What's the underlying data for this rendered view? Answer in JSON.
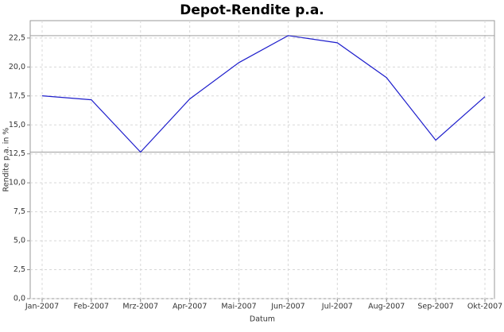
{
  "chart_data": {
    "type": "line",
    "title": "Depot-Rendite p.a.",
    "x_label": "Datum",
    "y_label": "Rendite p.a. in %",
    "categories": [
      "Jan-2007",
      "Feb-2007",
      "Mrz-2007",
      "Apr-2007",
      "Mai-2007",
      "Jun-2007",
      "Jul-2007",
      "Aug-2007",
      "Sep-2007",
      "Okt-2007"
    ],
    "series": [
      {
        "name": "Rendite",
        "color": "#1f1fcc",
        "values": [
          17.51,
          17.17,
          12.65,
          17.24,
          20.38,
          22.71,
          22.09,
          19.08,
          13.68,
          17.44
        ]
      }
    ],
    "ylim": [
      0,
      24
    ],
    "yticks": [
      {
        "value": 0,
        "label": "0,0"
      },
      {
        "value": 2.5,
        "label": "2,5"
      },
      {
        "value": 5,
        "label": "5,0"
      },
      {
        "value": 7.5,
        "label": "7,5"
      },
      {
        "value": 10,
        "label": "10,0"
      },
      {
        "value": 12.5,
        "label": "12,5"
      },
      {
        "value": 15,
        "label": "15,0"
      },
      {
        "value": 17.5,
        "label": "17,5"
      },
      {
        "value": 20,
        "label": "20,0"
      },
      {
        "value": 22.5,
        "label": "22,5"
      }
    ],
    "reference_lines": [
      22.71,
      12.65
    ],
    "grid": true
  }
}
